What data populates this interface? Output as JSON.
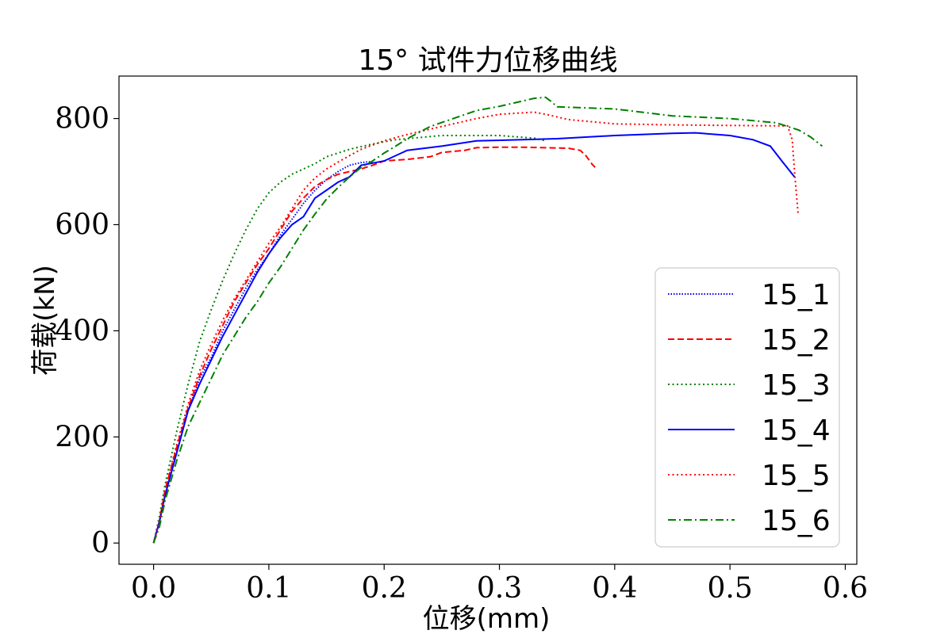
{
  "chart_data": {
    "type": "line",
    "title": "15° 试件力位移曲线",
    "xlabel": "位移(mm)",
    "ylabel": "荷载(kN)",
    "xlim": [
      -0.03,
      0.61
    ],
    "ylim": [
      -40,
      880
    ],
    "xticks": [
      0.0,
      0.1,
      0.2,
      0.3,
      0.4,
      0.5,
      0.6
    ],
    "xtick_labels": [
      "0.0",
      "0.1",
      "0.2",
      "0.3",
      "0.4",
      "0.5",
      "0.6"
    ],
    "yticks": [
      0,
      200,
      400,
      600,
      800
    ],
    "ytick_labels": [
      "0",
      "200",
      "400",
      "600",
      "800"
    ],
    "grid": false,
    "legend_position": "lower-right",
    "series": [
      {
        "name": "15_1",
        "color": "#0000ff",
        "style": "dotted-dense",
        "points": [
          [
            0,
            0
          ],
          [
            0.005,
            40
          ],
          [
            0.01,
            90
          ],
          [
            0.02,
            170
          ],
          [
            0.03,
            250
          ],
          [
            0.04,
            310
          ],
          [
            0.05,
            350
          ],
          [
            0.06,
            400
          ],
          [
            0.07,
            440
          ],
          [
            0.08,
            480
          ],
          [
            0.09,
            515
          ],
          [
            0.1,
            545
          ],
          [
            0.11,
            580
          ],
          [
            0.12,
            610
          ],
          [
            0.13,
            640
          ],
          [
            0.14,
            665
          ],
          [
            0.15,
            685
          ],
          [
            0.16,
            700
          ],
          [
            0.17,
            712
          ],
          [
            0.18,
            717
          ],
          [
            0.19,
            719
          ]
        ]
      },
      {
        "name": "15_2",
        "color": "#ff0000",
        "style": "dashed",
        "points": [
          [
            0,
            0
          ],
          [
            0.005,
            40
          ],
          [
            0.01,
            100
          ],
          [
            0.02,
            180
          ],
          [
            0.03,
            255
          ],
          [
            0.04,
            315
          ],
          [
            0.05,
            365
          ],
          [
            0.06,
            410
          ],
          [
            0.07,
            455
          ],
          [
            0.08,
            490
          ],
          [
            0.09,
            525
          ],
          [
            0.1,
            555
          ],
          [
            0.11,
            590
          ],
          [
            0.12,
            625
          ],
          [
            0.13,
            650
          ],
          [
            0.14,
            672
          ],
          [
            0.15,
            685
          ],
          [
            0.16,
            695
          ],
          [
            0.17,
            700
          ],
          [
            0.18,
            705
          ],
          [
            0.19,
            712
          ],
          [
            0.2,
            720
          ],
          [
            0.22,
            723
          ],
          [
            0.24,
            728
          ],
          [
            0.25,
            736
          ],
          [
            0.27,
            740
          ],
          [
            0.28,
            745
          ],
          [
            0.3,
            746
          ],
          [
            0.32,
            746
          ],
          [
            0.34,
            745
          ],
          [
            0.36,
            744
          ],
          [
            0.37,
            740
          ],
          [
            0.375,
            730
          ],
          [
            0.38,
            715
          ],
          [
            0.383,
            708
          ]
        ]
      },
      {
        "name": "15_3",
        "color": "#008000",
        "style": "dotted",
        "points": [
          [
            0,
            0
          ],
          [
            0.005,
            50
          ],
          [
            0.01,
            110
          ],
          [
            0.02,
            210
          ],
          [
            0.03,
            300
          ],
          [
            0.04,
            380
          ],
          [
            0.05,
            440
          ],
          [
            0.06,
            495
          ],
          [
            0.07,
            545
          ],
          [
            0.08,
            590
          ],
          [
            0.09,
            630
          ],
          [
            0.1,
            660
          ],
          [
            0.11,
            680
          ],
          [
            0.12,
            695
          ],
          [
            0.13,
            705
          ],
          [
            0.14,
            715
          ],
          [
            0.15,
            728
          ],
          [
            0.17,
            742
          ],
          [
            0.19,
            752
          ],
          [
            0.21,
            760
          ],
          [
            0.25,
            768
          ],
          [
            0.3,
            768
          ],
          [
            0.33,
            763
          ],
          [
            0.34,
            758
          ]
        ]
      },
      {
        "name": "15_4",
        "color": "#0000ff",
        "style": "solid",
        "points": [
          [
            0,
            0
          ],
          [
            0.005,
            40
          ],
          [
            0.01,
            90
          ],
          [
            0.02,
            170
          ],
          [
            0.03,
            250
          ],
          [
            0.04,
            300
          ],
          [
            0.05,
            345
          ],
          [
            0.06,
            390
          ],
          [
            0.07,
            430
          ],
          [
            0.08,
            470
          ],
          [
            0.09,
            510
          ],
          [
            0.1,
            545
          ],
          [
            0.11,
            575
          ],
          [
            0.12,
            600
          ],
          [
            0.13,
            615
          ],
          [
            0.14,
            650
          ],
          [
            0.15,
            665
          ],
          [
            0.16,
            680
          ],
          [
            0.17,
            690
          ],
          [
            0.18,
            712
          ],
          [
            0.2,
            720
          ],
          [
            0.22,
            740
          ],
          [
            0.25,
            748
          ],
          [
            0.28,
            758
          ],
          [
            0.32,
            760
          ],
          [
            0.35,
            762
          ],
          [
            0.4,
            768
          ],
          [
            0.45,
            772
          ],
          [
            0.47,
            773
          ],
          [
            0.5,
            768
          ],
          [
            0.52,
            760
          ],
          [
            0.535,
            748
          ],
          [
            0.545,
            720
          ],
          [
            0.556,
            690
          ]
        ]
      },
      {
        "name": "15_5",
        "color": "#ff0000",
        "style": "dotted",
        "points": [
          [
            0,
            0
          ],
          [
            0.005,
            40
          ],
          [
            0.01,
            100
          ],
          [
            0.02,
            185
          ],
          [
            0.03,
            262
          ],
          [
            0.04,
            325
          ],
          [
            0.05,
            375
          ],
          [
            0.06,
            420
          ],
          [
            0.07,
            460
          ],
          [
            0.08,
            495
          ],
          [
            0.09,
            530
          ],
          [
            0.1,
            565
          ],
          [
            0.11,
            595
          ],
          [
            0.12,
            630
          ],
          [
            0.13,
            665
          ],
          [
            0.14,
            688
          ],
          [
            0.15,
            705
          ],
          [
            0.16,
            718
          ],
          [
            0.17,
            730
          ],
          [
            0.18,
            742
          ],
          [
            0.2,
            758
          ],
          [
            0.22,
            770
          ],
          [
            0.25,
            785
          ],
          [
            0.28,
            800
          ],
          [
            0.3,
            808
          ],
          [
            0.33,
            812
          ],
          [
            0.34,
            808
          ],
          [
            0.36,
            798
          ],
          [
            0.4,
            790
          ],
          [
            0.45,
            788
          ],
          [
            0.5,
            787
          ],
          [
            0.55,
            786
          ],
          [
            0.554,
            760
          ],
          [
            0.556,
            700
          ],
          [
            0.559,
            622
          ]
        ]
      },
      {
        "name": "15_6",
        "color": "#008000",
        "style": "dashdot",
        "points": [
          [
            0,
            0
          ],
          [
            0.005,
            30
          ],
          [
            0.01,
            80
          ],
          [
            0.02,
            155
          ],
          [
            0.03,
            220
          ],
          [
            0.04,
            265
          ],
          [
            0.05,
            310
          ],
          [
            0.06,
            355
          ],
          [
            0.07,
            390
          ],
          [
            0.08,
            425
          ],
          [
            0.09,
            455
          ],
          [
            0.1,
            490
          ],
          [
            0.11,
            520
          ],
          [
            0.12,
            555
          ],
          [
            0.13,
            590
          ],
          [
            0.14,
            620
          ],
          [
            0.15,
            648
          ],
          [
            0.16,
            670
          ],
          [
            0.17,
            690
          ],
          [
            0.18,
            708
          ],
          [
            0.19,
            720
          ],
          [
            0.2,
            735
          ],
          [
            0.21,
            748
          ],
          [
            0.22,
            762
          ],
          [
            0.24,
            785
          ],
          [
            0.26,
            800
          ],
          [
            0.28,
            815
          ],
          [
            0.3,
            823
          ],
          [
            0.33,
            838
          ],
          [
            0.34,
            840
          ],
          [
            0.345,
            832
          ],
          [
            0.35,
            822
          ],
          [
            0.4,
            818
          ],
          [
            0.45,
            805
          ],
          [
            0.5,
            800
          ],
          [
            0.54,
            792
          ],
          [
            0.55,
            785
          ],
          [
            0.56,
            778
          ],
          [
            0.57,
            765
          ],
          [
            0.58,
            748
          ]
        ]
      }
    ]
  }
}
